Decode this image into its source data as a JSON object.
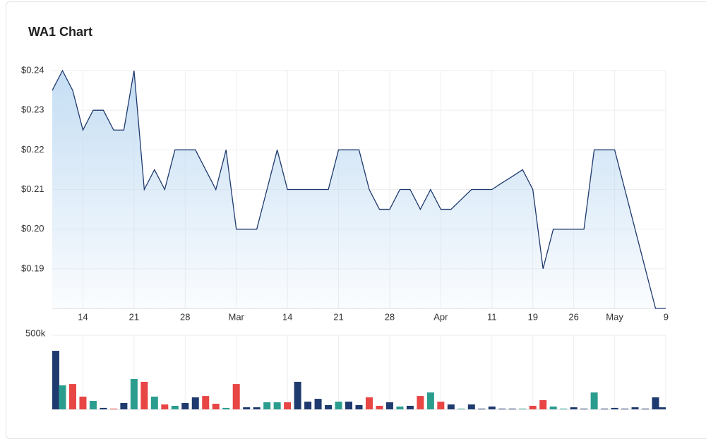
{
  "chart_data": [
    {
      "type": "area",
      "title": "WA1 Chart",
      "color": "#1f3a6e",
      "fill": "#c2dcf3",
      "categories": [
        null,
        null,
        null,
        "14",
        null,
        null,
        null,
        null,
        "21",
        null,
        null,
        null,
        null,
        "28",
        null,
        null,
        null,
        null,
        "Mar",
        null,
        null,
        null,
        null,
        "14",
        null,
        null,
        null,
        null,
        "21",
        null,
        null,
        null,
        null,
        "28",
        null,
        null,
        null,
        null,
        "Apr",
        null,
        null,
        null,
        null,
        "11",
        null,
        null,
        null,
        "19",
        null,
        null,
        null,
        "26",
        null,
        null,
        null,
        "May",
        null,
        null,
        null,
        null,
        "9"
      ],
      "values": [
        0.235,
        0.24,
        0.235,
        0.225,
        0.23,
        0.23,
        0.225,
        0.225,
        0.24,
        0.21,
        0.215,
        0.21,
        0.22,
        0.22,
        0.22,
        0.215,
        0.21,
        0.22,
        0.2,
        0.2,
        0.2,
        0.21,
        0.22,
        0.21,
        0.21,
        0.21,
        0.21,
        0.21,
        0.22,
        0.22,
        0.22,
        0.21,
        0.205,
        0.205,
        0.21,
        0.21,
        0.205,
        0.21,
        0.205,
        0.205,
        0.2075,
        0.21,
        0.21,
        0.21,
        0.2117,
        0.2133,
        0.215,
        0.21,
        0.19,
        0.2,
        0.2,
        0.2,
        0.2,
        0.22,
        0.22,
        0.22,
        0.21,
        0.2,
        0.19,
        0.18,
        0.18
      ],
      "ylim": [
        0.18,
        0.24
      ],
      "yticks": [
        {
          "value": 0.19,
          "label": "$0.19"
        },
        {
          "value": 0.2,
          "label": "$0.20"
        },
        {
          "value": 0.21,
          "label": "$0.21"
        },
        {
          "value": 0.22,
          "label": "$0.22"
        },
        {
          "value": 0.23,
          "label": "$0.23"
        },
        {
          "value": 0.24,
          "label": "$0.24"
        }
      ],
      "grid": true
    },
    {
      "type": "bar",
      "values": [
        395000,
        162000,
        171000,
        86000,
        57000,
        10000,
        5000,
        43000,
        205000,
        186000,
        86000,
        33000,
        24000,
        43000,
        81000,
        90000,
        38000,
        10000,
        171000,
        14000,
        14000,
        48000,
        48000,
        48000,
        186000,
        52000,
        71000,
        29000,
        52000,
        52000,
        29000,
        81000,
        24000,
        48000,
        19000,
        24000,
        90000,
        114000,
        52000,
        33000,
        5000,
        33000,
        5000,
        19000,
        5000,
        5000,
        5000,
        24000,
        62000,
        19000,
        5000,
        14000,
        5000,
        114000,
        5000,
        10000,
        5000,
        14000,
        5000,
        81000,
        14000
      ],
      "colors": [
        "#1f3a6e",
        "#2a9d8f",
        "#e84545",
        "#e84545",
        "#2a9d8f",
        "#1f3a6e",
        "#e84545",
        "#1f3a6e",
        "#2a9d8f",
        "#e84545",
        "#2a9d8f",
        "#e84545",
        "#2a9d8f",
        "#1f3a6e",
        "#1f3a6e",
        "#e84545",
        "#e84545",
        "#2a9d8f",
        "#e84545",
        "#1f3a6e",
        "#1f3a6e",
        "#2a9d8f",
        "#2a9d8f",
        "#e84545",
        "#1f3a6e",
        "#1f3a6e",
        "#1f3a6e",
        "#1f3a6e",
        "#2a9d8f",
        "#1f3a6e",
        "#1f3a6e",
        "#e84545",
        "#e84545",
        "#1f3a6e",
        "#2a9d8f",
        "#1f3a6e",
        "#e84545",
        "#2a9d8f",
        "#e84545",
        "#1f3a6e",
        "#2a9d8f",
        "#1f3a6e",
        "#1f3a6e",
        "#1f3a6e",
        "#1f3a6e",
        "#1f3a6e",
        "#2a9d8f",
        "#e84545",
        "#e84545",
        "#2a9d8f",
        "#2a9d8f",
        "#1f3a6e",
        "#1f3a6e",
        "#2a9d8f",
        "#1f3a6e",
        "#1f3a6e",
        "#1f3a6e",
        "#1f3a6e",
        "#1f3a6e",
        "#1f3a6e",
        "#1f3a6e"
      ],
      "ylim": [
        0,
        500000
      ],
      "yticks": [
        {
          "value": 500000,
          "label": "500k"
        }
      ],
      "grid": true
    }
  ]
}
